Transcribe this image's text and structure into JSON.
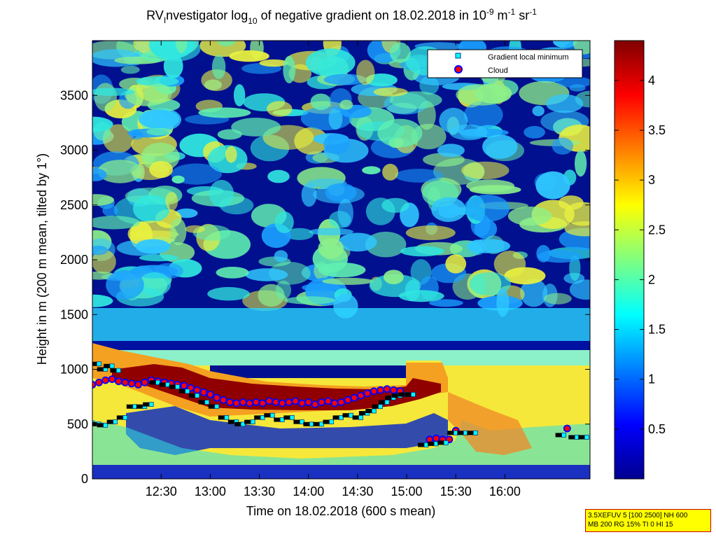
{
  "chart_data": {
    "type": "heatmap",
    "title_parts": {
      "prefix": "RV",
      "sub_i": "I",
      "mid": "nvestigator log",
      "sub_10": "10",
      "rest": " of negative gradient on 18.02.2018 in 10",
      "exp_1": "-9",
      "unit_m": " m",
      "exp_2": "-1",
      "unit_sr": " sr",
      "exp_3": "-1"
    },
    "xlabel": "Time on 18.02.2018 (600 s mean)",
    "ylabel": "Height in m (200 m mean, tilted by 1°)",
    "x_tick_labels": [
      "12:30",
      "13:00",
      "13:30",
      "14:00",
      "14:30",
      "15:00",
      "15:30",
      "16:00"
    ],
    "x_tick_minutes": [
      750,
      780,
      810,
      840,
      870,
      900,
      930,
      960
    ],
    "xlim_minutes": [
      708,
      1012
    ],
    "y_ticks": [
      0,
      500,
      1000,
      1500,
      2000,
      2500,
      3000,
      3500
    ],
    "ylim": [
      0,
      4000
    ],
    "colorbar_ticks": [
      0.5,
      1,
      1.5,
      2,
      2.5,
      3,
      3.5,
      4
    ],
    "clim": [
      0,
      4.4
    ],
    "legend": {
      "position": "top-right",
      "entries": [
        {
          "label": "Gradient local minimum",
          "marker": "square",
          "color": "#00ffff"
        },
        {
          "label": "Cloud",
          "marker": "circle",
          "color": "#ff0000",
          "edge": "#0000ff"
        }
      ]
    },
    "cloud_points": [
      [
        708,
        860
      ],
      [
        712,
        880
      ],
      [
        716,
        900
      ],
      [
        720,
        910
      ],
      [
        724,
        890
      ],
      [
        728,
        880
      ],
      [
        732,
        870
      ],
      [
        736,
        860
      ],
      [
        740,
        880
      ],
      [
        744,
        900
      ],
      [
        748,
        890
      ],
      [
        752,
        880
      ],
      [
        756,
        870
      ],
      [
        760,
        860
      ],
      [
        764,
        850
      ],
      [
        768,
        830
      ],
      [
        772,
        810
      ],
      [
        776,
        790
      ],
      [
        780,
        770
      ],
      [
        784,
        740
      ],
      [
        788,
        720
      ],
      [
        792,
        700
      ],
      [
        796,
        690
      ],
      [
        800,
        700
      ],
      [
        804,
        690
      ],
      [
        808,
        700
      ],
      [
        812,
        690
      ],
      [
        816,
        710
      ],
      [
        820,
        700
      ],
      [
        824,
        690
      ],
      [
        828,
        700
      ],
      [
        832,
        710
      ],
      [
        836,
        690
      ],
      [
        840,
        700
      ],
      [
        844,
        680
      ],
      [
        848,
        700
      ],
      [
        852,
        710
      ],
      [
        856,
        690
      ],
      [
        860,
        700
      ],
      [
        864,
        720
      ],
      [
        868,
        740
      ],
      [
        872,
        760
      ],
      [
        876,
        780
      ],
      [
        880,
        800
      ],
      [
        884,
        810
      ],
      [
        888,
        820
      ],
      [
        892,
        810
      ],
      [
        896,
        800
      ],
      [
        914,
        360
      ],
      [
        918,
        370
      ],
      [
        922,
        360
      ],
      [
        926,
        360
      ],
      [
        930,
        440
      ],
      [
        998,
        460
      ]
    ],
    "gradient_minimum_points": [
      [
        708,
        510
      ],
      [
        712,
        500
      ],
      [
        716,
        490
      ],
      [
        722,
        520
      ],
      [
        728,
        560
      ],
      [
        734,
        660
      ],
      [
        740,
        660
      ],
      [
        744,
        680
      ],
      [
        712,
        1050
      ],
      [
        716,
        1000
      ],
      [
        720,
        1030
      ],
      [
        724,
        990
      ],
      [
        748,
        880
      ],
      [
        754,
        860
      ],
      [
        760,
        840
      ],
      [
        766,
        800
      ],
      [
        772,
        760
      ],
      [
        778,
        700
      ],
      [
        784,
        660
      ],
      [
        790,
        560
      ],
      [
        796,
        520
      ],
      [
        800,
        500
      ],
      [
        806,
        520
      ],
      [
        812,
        560
      ],
      [
        818,
        580
      ],
      [
        824,
        540
      ],
      [
        830,
        560
      ],
      [
        836,
        520
      ],
      [
        842,
        500
      ],
      [
        848,
        500
      ],
      [
        854,
        520
      ],
      [
        860,
        560
      ],
      [
        866,
        580
      ],
      [
        872,
        560
      ],
      [
        876,
        600
      ],
      [
        880,
        620
      ],
      [
        884,
        660
      ],
      [
        888,
        700
      ],
      [
        892,
        740
      ],
      [
        896,
        760
      ],
      [
        900,
        770
      ],
      [
        904,
        770
      ],
      [
        912,
        310
      ],
      [
        918,
        320
      ],
      [
        924,
        330
      ],
      [
        930,
        420
      ],
      [
        936,
        420
      ],
      [
        942,
        420
      ],
      [
        996,
        400
      ],
      [
        1004,
        380
      ],
      [
        1010,
        380
      ]
    ]
  },
  "info_box": {
    "line1": "3.5XEFUV 5 [100 2500] NH 600",
    "line2": "MB 200 RG 15% TI 0 HI 15"
  },
  "colors": {
    "colormap": "jet",
    "cloud_fill": "#ff0000",
    "cloud_edge": "#0000ff",
    "minimum_fill": "#00ffff"
  }
}
